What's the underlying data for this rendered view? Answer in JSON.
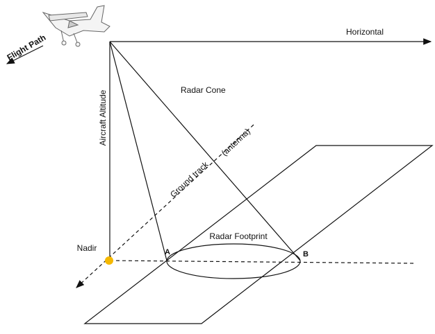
{
  "labels": {
    "horizontal": "Horizontal",
    "flight_path": "Flight Path",
    "altitude": "Aircraft Altitude",
    "radar_cone": "Radar Cone",
    "ground_track": "Ground track",
    "antenna": "(antenna)",
    "nadir": "Nadir",
    "footprint": "Radar Footprint",
    "point_a": "A",
    "point_b": "B"
  }
}
